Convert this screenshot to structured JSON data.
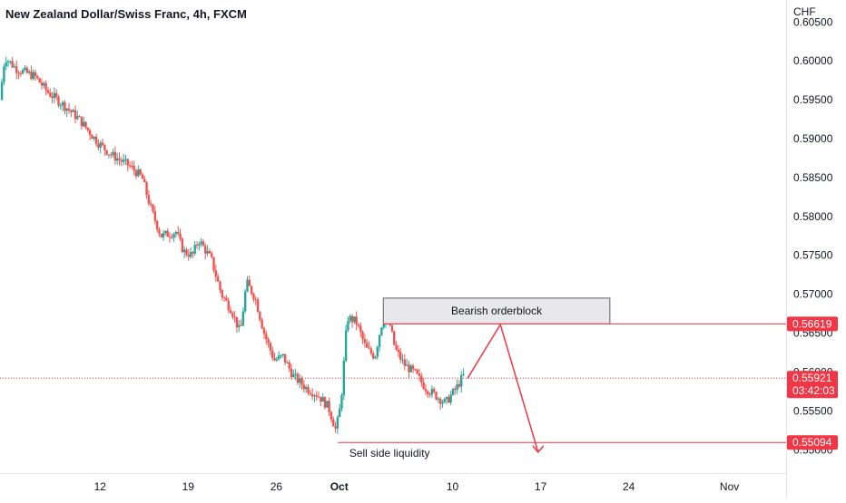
{
  "header": {
    "title": "New Zealand Dollar/Swiss Franc, 4h, FXCM"
  },
  "chart_data": {
    "type": "candlestick",
    "y_unit": "CHF",
    "ylim": [
      0.547,
      0.6055
    ],
    "y_ticks": [
      "0.60500",
      "0.60000",
      "0.59500",
      "0.59000",
      "0.58500",
      "0.58000",
      "0.57500",
      "0.57000",
      "0.56500",
      "0.56000",
      "0.55500",
      "0.55000"
    ],
    "x_ticks": [
      "12",
      "19",
      "26",
      "Oct",
      "10",
      "17",
      "24",
      "Nov"
    ],
    "x_tick_days": [
      12,
      19,
      26,
      31,
      40,
      47,
      54,
      62
    ],
    "xlim_days": [
      4.05,
      66.5
    ],
    "price_badges": [
      {
        "value": "0.56619",
        "sub": "",
        "color": "#f23645"
      },
      {
        "value": "0.55921",
        "sub": "03:42:03",
        "color": "#f23645"
      },
      {
        "value": "0.55094",
        "sub": "",
        "color": "#f23645"
      }
    ],
    "annotations": {
      "box_label": "Bearish orderblock",
      "liquidity_label": "Sell side liquidity"
    },
    "colors": {
      "up": "#26a69a",
      "down": "#ef5350",
      "line": "#f23645"
    }
  }
}
